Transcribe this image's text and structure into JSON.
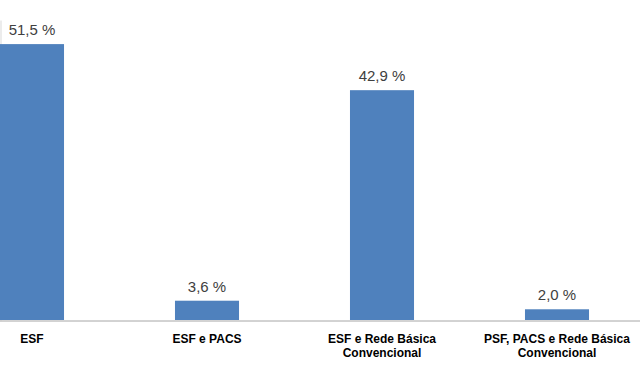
{
  "chart_data": {
    "type": "bar",
    "categories": [
      "ESF",
      "ESF e PACS",
      "ESF e Rede Básica Convencional",
      "PSF, PACS e Rede Básica Convencional"
    ],
    "values": [
      51.5,
      3.6,
      42.9,
      2.0
    ],
    "value_labels": [
      "51,5 %",
      "3,6 %",
      "42,9 %",
      "2,0 %"
    ],
    "color": "#4f81bd",
    "ylim": [
      0,
      56
    ],
    "data_labels": true,
    "tick_labels": "x"
  }
}
